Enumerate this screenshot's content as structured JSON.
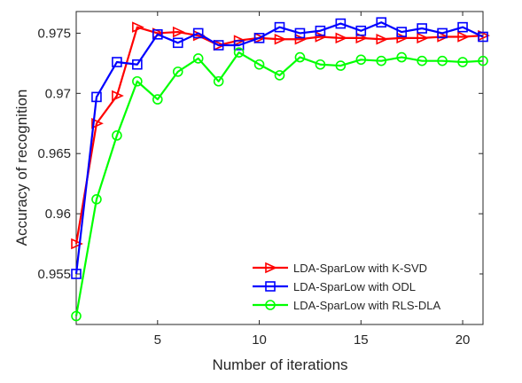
{
  "chart_data": {
    "type": "line",
    "title": "",
    "xlabel": "Number of iterations",
    "ylabel": "Accuracy of recognition",
    "xlim": [
      1,
      21
    ],
    "ylim": [
      0.9508,
      0.9768
    ],
    "xticks": [
      5,
      10,
      15,
      20
    ],
    "yticks": [
      0.955,
      0.96,
      0.965,
      0.97,
      0.975
    ],
    "ytick_labels": [
      "0.955",
      "0.96",
      "0.965",
      "0.97",
      "0.975"
    ],
    "grid": false,
    "legend_position": "bottom-right",
    "x": [
      1,
      2,
      3,
      4,
      5,
      6,
      7,
      8,
      9,
      10,
      11,
      12,
      13,
      14,
      15,
      16,
      17,
      18,
      19,
      20,
      21
    ],
    "series": [
      {
        "name": "LDA-SparLow with K-SVD",
        "color": "#ff0000",
        "marker": "triangle-right",
        "values": [
          0.9575,
          0.9675,
          0.9698,
          0.9755,
          0.975,
          0.9751,
          0.9748,
          0.974,
          0.9744,
          0.9746,
          0.9745,
          0.9745,
          0.9747,
          0.9746,
          0.9746,
          0.9745,
          0.9746,
          0.9746,
          0.9747,
          0.9747,
          0.9748
        ]
      },
      {
        "name": "LDA-SparLow with ODL",
        "color": "#0000ff",
        "marker": "square",
        "values": [
          0.955,
          0.9697,
          0.9726,
          0.9724,
          0.9749,
          0.9742,
          0.975,
          0.974,
          0.974,
          0.9746,
          0.9755,
          0.975,
          0.9752,
          0.9758,
          0.9752,
          0.9759,
          0.9751,
          0.9754,
          0.975,
          0.9755,
          0.9747
        ]
      },
      {
        "name": "LDA-SparLow with RLS-DLA",
        "color": "#00ff00",
        "marker": "circle",
        "values": [
          0.9515,
          0.9612,
          0.9665,
          0.971,
          0.9695,
          0.9718,
          0.9729,
          0.971,
          0.9734,
          0.9724,
          0.9715,
          0.973,
          0.9724,
          0.9723,
          0.9728,
          0.9727,
          0.973,
          0.9727,
          0.9727,
          0.9726,
          0.9727
        ]
      }
    ]
  }
}
